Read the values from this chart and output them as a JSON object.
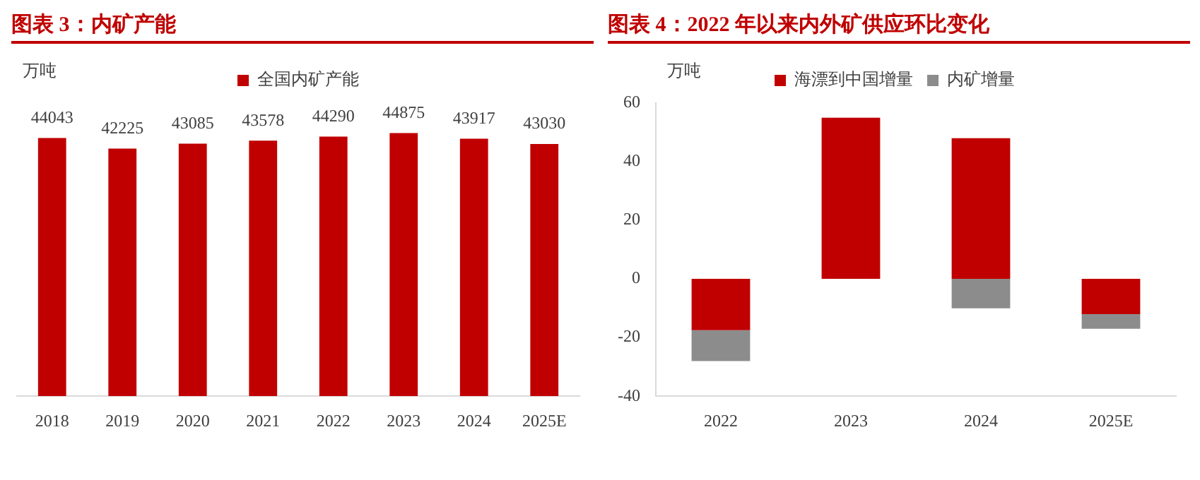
{
  "chart_data": [
    {
      "type": "bar",
      "title": "图表 3：内矿产能",
      "ylabel": "万吨",
      "categories": [
        "2018",
        "2019",
        "2020",
        "2021",
        "2022",
        "2023",
        "2024",
        "2025E"
      ],
      "series": [
        {
          "name": "全国内矿产能",
          "color": "#c00000",
          "values": [
            44043,
            42225,
            43085,
            43578,
            44290,
            44875,
            43917,
            43030
          ]
        }
      ],
      "data_labels": true,
      "legend": "top",
      "tick_labels": "x",
      "grid": false
    },
    {
      "type": "bar",
      "title": "图表 4：2022 年以来内外矿供应环比变化",
      "ylabel": "万吨",
      "categories": [
        "2022",
        "2023",
        "2024",
        "2025E"
      ],
      "stacked": true,
      "series": [
        {
          "name": "海漂到中国增量",
          "color": "#c00000",
          "values": [
            -17.5,
            55,
            48,
            -12
          ]
        },
        {
          "name": "内矿增量",
          "color": "#8c8c8c",
          "values": [
            -10.5,
            null,
            -10,
            -5
          ]
        }
      ],
      "ylim": [
        -40,
        60
      ],
      "yticks": [
        -40,
        -20,
        0,
        20,
        40,
        60
      ],
      "legend": "top",
      "grid": false
    }
  ]
}
